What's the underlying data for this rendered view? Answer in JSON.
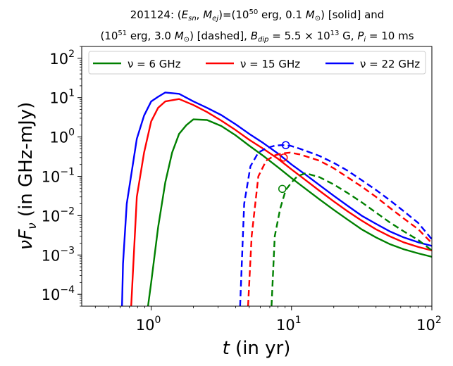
{
  "chart_data": {
    "type": "line",
    "title_lines": [
      "201124: (E_sn, M_ej)=(10^50 erg, 0.1 M_⊙) [solid] and",
      "(10^51 erg, 3.0 M_⊙) [dashed], B_dip = 5.5 × 10^13 G, P_i = 10 ms"
    ],
    "xlabel": "t (in yr)",
    "ylabel": "νF_ν (in GHz-mJy)",
    "xscale": "log",
    "yscale": "log",
    "xlim": [
      0.32,
      100
    ],
    "ylim": [
      5e-05,
      200
    ],
    "xticks": [
      {
        "value": 1,
        "label": "10^0"
      },
      {
        "value": 10,
        "label": "10^1"
      },
      {
        "value": 100,
        "label": "10^2"
      }
    ],
    "yticks": [
      {
        "value": 0.0001,
        "label": "10^-4"
      },
      {
        "value": 0.001,
        "label": "10^-3"
      },
      {
        "value": 0.01,
        "label": "10^-2"
      },
      {
        "value": 0.1,
        "label": "10^-1"
      },
      {
        "value": 1,
        "label": "10^0"
      },
      {
        "value": 10,
        "label": "10^1"
      },
      {
        "value": 100,
        "label": "10^2"
      }
    ],
    "legend_position": "top",
    "series": [
      {
        "name": "ν = 6 GHz",
        "color": "#008000",
        "style": "solid",
        "x": [
          0.95,
          1.0,
          1.12,
          1.26,
          1.41,
          1.58,
          1.78,
          2.0,
          2.5,
          3.16,
          4.0,
          5.0,
          6.3,
          8.0,
          10,
          12.6,
          15.8,
          20,
          25,
          31.6,
          40,
          50,
          63,
          80,
          100
        ],
        "y": [
          5e-05,
          0.0002,
          0.005,
          0.07,
          0.4,
          1.2,
          2.0,
          2.8,
          2.7,
          1.9,
          1.1,
          0.6,
          0.33,
          0.17,
          0.09,
          0.048,
          0.026,
          0.014,
          0.008,
          0.0045,
          0.0028,
          0.0019,
          0.0014,
          0.0011,
          0.0009
        ]
      },
      {
        "name": "ν = 15 GHz",
        "color": "#ff0000",
        "style": "solid",
        "x": [
          0.72,
          0.79,
          0.89,
          1.0,
          1.12,
          1.26,
          1.58,
          2.0,
          2.5,
          3.16,
          4.0,
          5.0,
          6.3,
          8.0,
          10,
          12.6,
          15.8,
          20,
          25,
          31.6,
          40,
          50,
          63,
          80,
          100
        ],
        "y": [
          5e-05,
          0.03,
          0.4,
          2.5,
          5.5,
          8.0,
          9.2,
          6.5,
          4.3,
          2.6,
          1.5,
          0.85,
          0.5,
          0.28,
          0.15,
          0.08,
          0.043,
          0.023,
          0.013,
          0.0075,
          0.0045,
          0.003,
          0.0021,
          0.0016,
          0.0013
        ]
      },
      {
        "name": "ν = 22 GHz",
        "color": "#0000ff",
        "style": "solid",
        "x": [
          0.62,
          0.63,
          0.67,
          0.79,
          0.89,
          1.0,
          1.12,
          1.26,
          1.58,
          2.0,
          2.5,
          3.16,
          4.0,
          5.0,
          6.3,
          8.0,
          10,
          12.6,
          15.8,
          20,
          25,
          31.6,
          40,
          50,
          63,
          80,
          100
        ],
        "y": [
          5e-05,
          0.0006,
          0.02,
          0.9,
          3.5,
          8.0,
          10.5,
          13.5,
          12.5,
          8.0,
          5.5,
          3.6,
          2.1,
          1.2,
          0.7,
          0.38,
          0.2,
          0.11,
          0.06,
          0.032,
          0.018,
          0.01,
          0.0062,
          0.004,
          0.0028,
          0.0021,
          0.0017
        ]
      },
      {
        "name": "ν = 6 GHz (dashed)",
        "color": "#008000",
        "style": "dashed",
        "x": [
          7.2,
          7.6,
          8.3,
          9.1,
          10,
          11,
          12.6,
          15.8,
          20,
          25,
          31.6,
          40,
          50,
          63,
          80,
          100
        ],
        "y": [
          5e-05,
          0.003,
          0.015,
          0.045,
          0.07,
          0.1,
          0.12,
          0.095,
          0.062,
          0.038,
          0.022,
          0.012,
          0.0068,
          0.004,
          0.0024,
          0.0013
        ]
      },
      {
        "name": "ν = 15 GHz (dashed)",
        "color": "#ff0000",
        "style": "dashed",
        "x": [
          4.9,
          5.2,
          5.8,
          6.6,
          7.6,
          8.5,
          9.8,
          11.5,
          15.8,
          20,
          25,
          31.6,
          40,
          50,
          63,
          80,
          100
        ],
        "y": [
          5e-05,
          0.003,
          0.1,
          0.25,
          0.34,
          0.38,
          0.4,
          0.36,
          0.25,
          0.16,
          0.095,
          0.055,
          0.03,
          0.016,
          0.0085,
          0.0045,
          0.002
        ]
      },
      {
        "name": "ν = 22 GHz (dashed)",
        "color": "#0000ff",
        "style": "dashed",
        "x": [
          4.3,
          4.6,
          5.1,
          5.8,
          6.6,
          7.6,
          8.5,
          9.8,
          11.5,
          15.8,
          20,
          25,
          31.6,
          40,
          50,
          63,
          80,
          100
        ],
        "y": [
          5e-05,
          0.02,
          0.18,
          0.4,
          0.52,
          0.6,
          0.62,
          0.6,
          0.5,
          0.33,
          0.22,
          0.14,
          0.08,
          0.045,
          0.025,
          0.013,
          0.0065,
          0.0025
        ]
      }
    ],
    "markers": [
      {
        "series": "ν = 6 GHz (dashed)",
        "x": 8.6,
        "y": 0.048,
        "color": "#008000"
      },
      {
        "series": "ν = 15 GHz (dashed)",
        "x": 8.8,
        "y": 0.3,
        "color": "#ff0000"
      },
      {
        "series": "ν = 22 GHz (dashed)",
        "x": 9.1,
        "y": 0.62,
        "color": "#0000ff"
      }
    ],
    "legend": [
      {
        "label": "ν = 6 GHz",
        "color": "#008000"
      },
      {
        "label": "ν = 15 GHz",
        "color": "#ff0000"
      },
      {
        "label": "ν = 22 GHz",
        "color": "#0000ff"
      }
    ]
  }
}
